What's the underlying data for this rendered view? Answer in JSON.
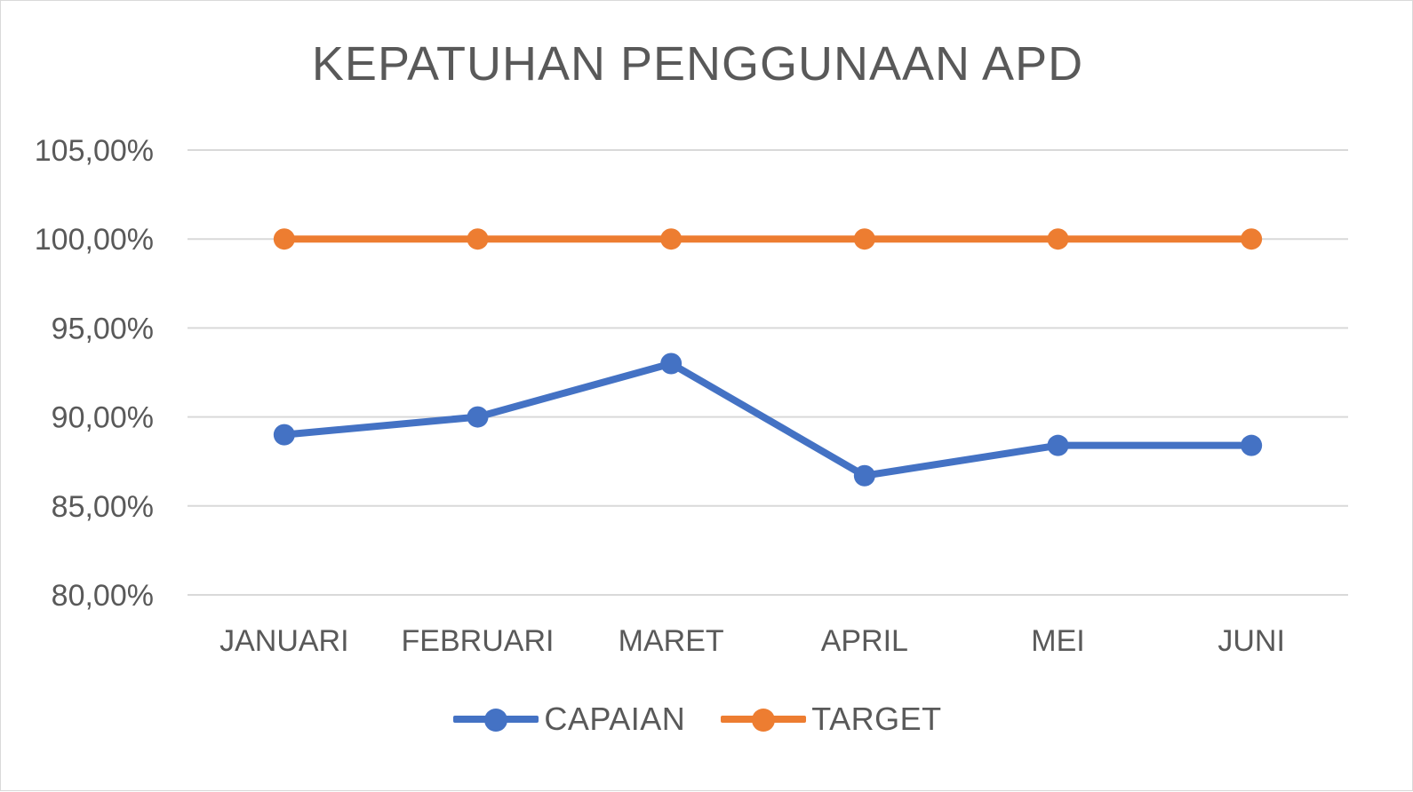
{
  "chart_data": {
    "type": "line",
    "title": "KEPATUHAN PENGGUNAAN APD",
    "categories": [
      "JANUARI",
      "FEBRUARI",
      "MARET",
      "APRIL",
      "MEI",
      "JUNI"
    ],
    "series": [
      {
        "name": "CAPAIAN",
        "color": "#4472c4",
        "values": [
          89.0,
          90.0,
          93.0,
          86.7,
          88.4,
          88.4
        ]
      },
      {
        "name": "TARGET",
        "color": "#ed7d31",
        "values": [
          100.0,
          100.0,
          100.0,
          100.0,
          100.0,
          100.0
        ]
      }
    ],
    "yticks": [
      "80,00%",
      "85,00%",
      "90,00%",
      "95,00%",
      "100,00%",
      "105,00%"
    ],
    "ytick_values": [
      80,
      85,
      90,
      95,
      100,
      105
    ],
    "ylim": [
      80,
      105
    ],
    "grid": true,
    "legend_position": "bottom"
  }
}
